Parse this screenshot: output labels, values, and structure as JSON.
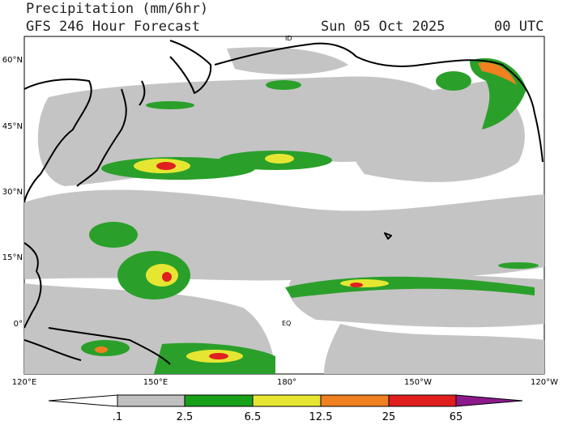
{
  "header": {
    "title": "Precipitation (mm/6hr)",
    "subtitle": "GFS 246 Hour Forecast",
    "date": "Sun 05 Oct 2025",
    "time": "00 UTC"
  },
  "map": {
    "lat_labels": [
      "60°N",
      "45°N",
      "30°N",
      "15°N",
      "0°"
    ],
    "lon_labels": [
      "120°E",
      "150°E",
      "180°",
      "150°W",
      "120°W"
    ],
    "annotations": [
      "ID",
      "EQ"
    ]
  },
  "colorbar": {
    "labels": [
      ".1",
      "2.5",
      "6.5",
      "12.5",
      "25",
      "65"
    ]
  }
}
